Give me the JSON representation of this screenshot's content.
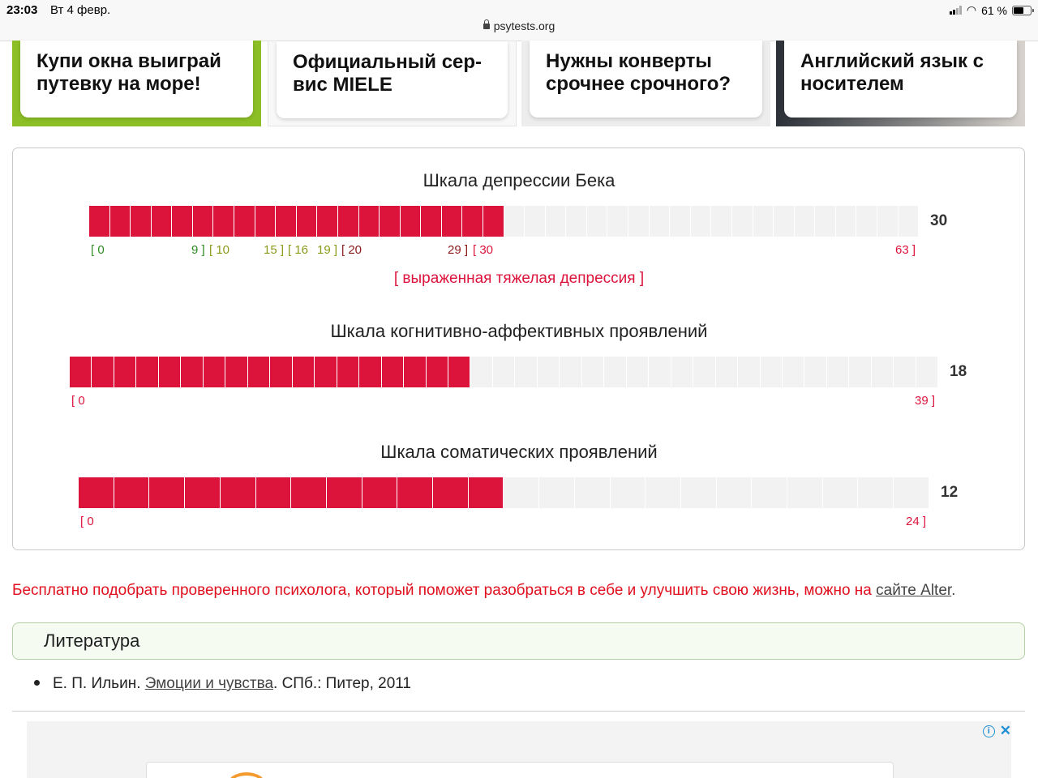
{
  "status_bar": {
    "time": "23:03",
    "date": "Вт 4 февр.",
    "url": "psytests.org",
    "battery": "61 %"
  },
  "ads": [
    "Купи окна выиграй путевку на море!",
    "Официальный сер­вис MIELE",
    "Нужны конверты срочнее срочного?",
    "Английский язык с носителем"
  ],
  "scales": [
    {
      "title": "Шкала депрессии Бека",
      "score": "30",
      "filled": 20,
      "segments": 40,
      "ticks": [
        "[ 0",
        "9 ]",
        "[ 10",
        "15 ]",
        "[ 16",
        "19 ]",
        "[ 20",
        "29 ]",
        "[ 30",
        "63 ]"
      ],
      "verdict": "[ выраженная тяжелая депрессия ]"
    },
    {
      "title": "Шкала когнитивно-аффективных проявлений",
      "score": "18",
      "filled": 18,
      "segments": 39,
      "ticks": [
        "[ 0",
        "39 ]"
      ]
    },
    {
      "title": "Шкала соматических проявлений",
      "score": "12",
      "filled": 12,
      "segments": 24,
      "ticks": [
        "[ 0",
        "24 ]"
      ]
    }
  ],
  "promo": {
    "text": "Бесплатно подобрать проверенного психолога, который поможет разобраться в себе и улучшить свою жизнь, можно на ",
    "link": "сайте Alter",
    "end": "."
  },
  "literature": {
    "heading": "Литература",
    "item_prefix": "Е. П. Ильин. ",
    "item_link": "Эмоции и чувства",
    "item_suffix": ". СПб.: Питер, 2011"
  },
  "colors": {
    "filled": "#dc143c",
    "empty": "#f2f2f2",
    "promo_text": "#e0101e"
  }
}
